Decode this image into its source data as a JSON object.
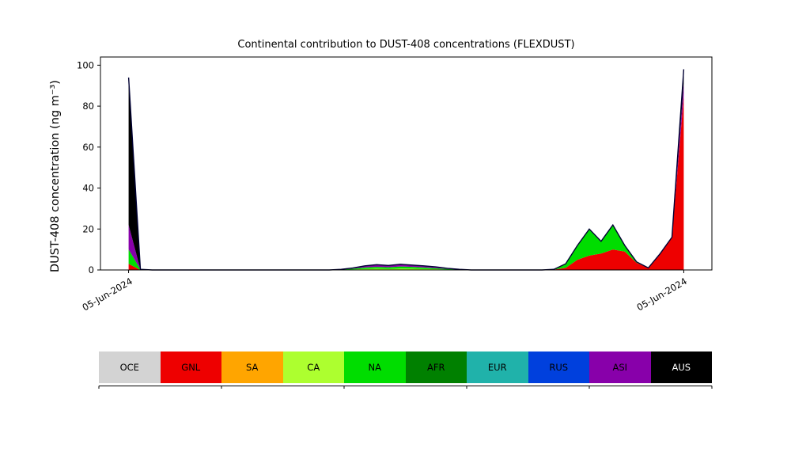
{
  "figure": {
    "background": "#ffffff"
  },
  "chart_data": {
    "type": "area",
    "stacked": true,
    "title": "Continental contribution to DUST-408 concentrations (FLEXDUST)",
    "ylabel": "DUST-408 concentration (ng m⁻³)",
    "xlabel": "",
    "xticklabels": [
      "05-Jun-2024",
      "05-Jun-2024"
    ],
    "yticks": [
      0,
      20,
      40,
      60,
      80,
      100
    ],
    "ylim": [
      0,
      104
    ],
    "grid": false,
    "legend_position": "bottom",
    "n_points": 48,
    "line_color": "#000033",
    "series": [
      {
        "name": "OCE",
        "color": "#d3d3d3",
        "values": [
          0,
          0,
          0,
          0,
          0,
          0,
          0,
          0,
          0,
          0,
          0,
          0,
          0,
          0,
          0,
          0,
          0,
          0,
          0,
          0,
          0,
          0,
          0,
          0,
          0,
          0,
          0,
          0,
          0,
          0,
          0,
          0,
          0,
          0,
          0,
          0,
          0,
          0,
          0,
          0,
          0,
          0,
          0,
          0,
          0,
          0,
          0,
          0
        ]
      },
      {
        "name": "GNL",
        "color": "#ee0000",
        "values": [
          3,
          0,
          0,
          0,
          0,
          0,
          0,
          0,
          0,
          0,
          0,
          0,
          0,
          0,
          0,
          0,
          0,
          0,
          0,
          0,
          0,
          0,
          0,
          0,
          0,
          0,
          0,
          0,
          0,
          0,
          0,
          0,
          0,
          0,
          0,
          0,
          0.2,
          1,
          5,
          7,
          8,
          10,
          9,
          3.5,
          1,
          8,
          16,
          85
        ]
      },
      {
        "name": "SA",
        "color": "#ffa500",
        "values": [
          0,
          0,
          0,
          0,
          0,
          0,
          0,
          0,
          0,
          0,
          0,
          0,
          0,
          0,
          0,
          0,
          0,
          0,
          0,
          0,
          0,
          0,
          0,
          0,
          0,
          0,
          0,
          0,
          0,
          0,
          0,
          0,
          0,
          0,
          0,
          0,
          0,
          0,
          0,
          0,
          0,
          0,
          0,
          0,
          0,
          0,
          0,
          0
        ]
      },
      {
        "name": "CA",
        "color": "#adff2f",
        "values": [
          0,
          0,
          0,
          0,
          0,
          0,
          0,
          0,
          0,
          0,
          0,
          0,
          0,
          0,
          0,
          0,
          0,
          0,
          0.1,
          0.25,
          0.5,
          0.6,
          0.5,
          0.7,
          0.6,
          0.5,
          0.4,
          0.2,
          0.1,
          0,
          0,
          0,
          0,
          0,
          0,
          0,
          0,
          0,
          0,
          0,
          0,
          0,
          0,
          0,
          0,
          0,
          0,
          0
        ]
      },
      {
        "name": "NA",
        "color": "#00dd00",
        "values": [
          7,
          0.3,
          0,
          0,
          0,
          0,
          0,
          0,
          0,
          0,
          0,
          0,
          0,
          0,
          0,
          0,
          0,
          0,
          0.1,
          0.35,
          0.7,
          0.9,
          0.8,
          1.0,
          0.9,
          0.7,
          0.5,
          0.3,
          0.1,
          0,
          0,
          0,
          0,
          0,
          0,
          0,
          0.1,
          2,
          7,
          13,
          6,
          12,
          3,
          0.5,
          0,
          0,
          0,
          0
        ]
      },
      {
        "name": "AFR",
        "color": "#008000",
        "values": [
          0,
          0,
          0,
          0,
          0,
          0,
          0,
          0,
          0,
          0,
          0,
          0,
          0,
          0,
          0,
          0,
          0,
          0,
          0,
          0,
          0,
          0,
          0,
          0,
          0,
          0,
          0,
          0,
          0,
          0,
          0,
          0,
          0,
          0,
          0,
          0,
          0,
          0,
          0,
          0,
          0,
          0,
          0,
          0,
          0,
          0,
          0,
          0
        ]
      },
      {
        "name": "EUR",
        "color": "#20b2aa",
        "values": [
          0,
          0,
          0,
          0,
          0,
          0,
          0,
          0,
          0,
          0,
          0,
          0,
          0,
          0,
          0,
          0,
          0,
          0,
          0,
          0,
          0,
          0,
          0,
          0,
          0,
          0,
          0,
          0,
          0,
          0,
          0,
          0,
          0,
          0,
          0,
          0,
          0,
          0,
          0,
          0,
          0,
          0,
          0,
          0,
          0,
          0,
          0,
          0
        ]
      },
      {
        "name": "RUS",
        "color": "#0040dd",
        "values": [
          0,
          0,
          0,
          0,
          0,
          0,
          0,
          0,
          0,
          0,
          0,
          0,
          0,
          0,
          0,
          0,
          0,
          0,
          0,
          0,
          0,
          0,
          0,
          0,
          0,
          0,
          0,
          0,
          0,
          0,
          0,
          0,
          0,
          0,
          0,
          0,
          0,
          0,
          0,
          0,
          0,
          0,
          0,
          0,
          0,
          0,
          0,
          0
        ]
      },
      {
        "name": "ASI",
        "color": "#8800aa",
        "values": [
          12,
          0,
          0,
          0,
          0,
          0,
          0,
          0,
          0,
          0,
          0,
          0,
          0,
          0,
          0,
          0,
          0,
          0,
          0.1,
          0.4,
          0.8,
          1.1,
          0.9,
          1.1,
          0.9,
          0.8,
          0.6,
          0.3,
          0.1,
          0,
          0,
          0,
          0,
          0,
          0,
          0,
          0,
          0,
          0,
          0,
          0,
          0,
          0,
          0,
          0,
          0,
          0,
          6
        ]
      },
      {
        "name": "AUS",
        "color": "#000000",
        "values": [
          72,
          0,
          0,
          0,
          0,
          0,
          0,
          0,
          0,
          0,
          0,
          0,
          0,
          0,
          0,
          0,
          0,
          0,
          0,
          0,
          0,
          0,
          0,
          0,
          0,
          0,
          0,
          0,
          0,
          0,
          0,
          0,
          0,
          0,
          0,
          0,
          0,
          0,
          0,
          0,
          0,
          0,
          0,
          0,
          0,
          0,
          0,
          7
        ]
      }
    ]
  },
  "legend": {
    "items": [
      {
        "label": "OCE",
        "color": "#d3d3d3",
        "text_color": "#000000"
      },
      {
        "label": "GNL",
        "color": "#ee0000",
        "text_color": "#000000"
      },
      {
        "label": "SA",
        "color": "#ffa500",
        "text_color": "#000000"
      },
      {
        "label": "CA",
        "color": "#adff2f",
        "text_color": "#000000"
      },
      {
        "label": "NA",
        "color": "#00dd00",
        "text_color": "#000000"
      },
      {
        "label": "AFR",
        "color": "#008000",
        "text_color": "#000000"
      },
      {
        "label": "EUR",
        "color": "#20b2aa",
        "text_color": "#000000"
      },
      {
        "label": "RUS",
        "color": "#0040dd",
        "text_color": "#000000"
      },
      {
        "label": "ASI",
        "color": "#8800aa",
        "text_color": "#000000"
      },
      {
        "label": "AUS",
        "color": "#000000",
        "text_color": "#ffffff"
      }
    ]
  }
}
